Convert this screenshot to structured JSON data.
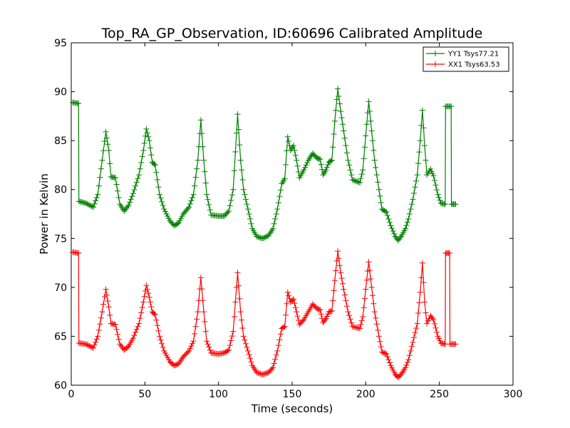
{
  "chart_data": {
    "type": "line",
    "title": "Top_RA_GP_Observation, ID:60696 Calibrated Amplitude",
    "xlabel": "Time (seconds)",
    "ylabel": "Power in Kelvin",
    "xlim": [
      0,
      300
    ],
    "ylim": [
      60,
      95
    ],
    "xticks": [
      0,
      50,
      100,
      150,
      200,
      250,
      300
    ],
    "yticks": [
      60,
      65,
      70,
      75,
      80,
      85,
      90,
      95
    ],
    "grid": false,
    "legend_position": "top-right",
    "marker": "+",
    "series": [
      {
        "name": "YY1 Tsys77.21",
        "color": "#008000",
        "anchors": [
          [
            1,
            88.9
          ],
          [
            5,
            88.8
          ],
          [
            5.2,
            78.8
          ],
          [
            10,
            78.6
          ],
          [
            15,
            78.2
          ],
          [
            18,
            79.5
          ],
          [
            21,
            83
          ],
          [
            23.5,
            85.9
          ],
          [
            25.5,
            84
          ],
          [
            27,
            81.3
          ],
          [
            30,
            81.2
          ],
          [
            33,
            78.5
          ],
          [
            36,
            77.8
          ],
          [
            39,
            78.4
          ],
          [
            42,
            79.6
          ],
          [
            46,
            81.5
          ],
          [
            49,
            84
          ],
          [
            51,
            86.2
          ],
          [
            53,
            85
          ],
          [
            55,
            82.8
          ],
          [
            57,
            82.5
          ],
          [
            60,
            79.5
          ],
          [
            63,
            78
          ],
          [
            67,
            76.8
          ],
          [
            70,
            76.3
          ],
          [
            73,
            76.6
          ],
          [
            76,
            77.5
          ],
          [
            80,
            78.2
          ],
          [
            83,
            79.5
          ],
          [
            86,
            83
          ],
          [
            88,
            87.1
          ],
          [
            90,
            83
          ],
          [
            92,
            79.5
          ],
          [
            95,
            77.4
          ],
          [
            100,
            77.3
          ],
          [
            104,
            77.3
          ],
          [
            107,
            77.8
          ],
          [
            110,
            80
          ],
          [
            113,
            87.7
          ],
          [
            115,
            83
          ],
          [
            117,
            80
          ],
          [
            120,
            78
          ],
          [
            123,
            76
          ],
          [
            126,
            75.2
          ],
          [
            130,
            75
          ],
          [
            134,
            75.3
          ],
          [
            137,
            76
          ],
          [
            140,
            78
          ],
          [
            143,
            80.6
          ],
          [
            145,
            81.1
          ],
          [
            147,
            85.4
          ],
          [
            149,
            84
          ],
          [
            151,
            84.5
          ],
          [
            153,
            83
          ],
          [
            155,
            81.2
          ],
          [
            158,
            82
          ],
          [
            161,
            83
          ],
          [
            164,
            83.7
          ],
          [
            167,
            83.2
          ],
          [
            169,
            83.1
          ],
          [
            171,
            81.5
          ],
          [
            173,
            82
          ],
          [
            175,
            82.8
          ],
          [
            177,
            83
          ],
          [
            179,
            87
          ],
          [
            181,
            90.3
          ],
          [
            183,
            88
          ],
          [
            185,
            86
          ],
          [
            188,
            83
          ],
          [
            191,
            81
          ],
          [
            196,
            80.7
          ],
          [
            198,
            82
          ],
          [
            200,
            85.5
          ],
          [
            202,
            89
          ],
          [
            204,
            86
          ],
          [
            206,
            83
          ],
          [
            209,
            80
          ],
          [
            211,
            78
          ],
          [
            214,
            77.7
          ],
          [
            217,
            76.3
          ],
          [
            220,
            75.2
          ],
          [
            222,
            74.8
          ],
          [
            224,
            75.2
          ],
          [
            227,
            76
          ],
          [
            229,
            77
          ],
          [
            232,
            79
          ],
          [
            235,
            81.5
          ],
          [
            237,
            85
          ],
          [
            238.5,
            88.1
          ],
          [
            240,
            84.5
          ],
          [
            241.5,
            81.5
          ],
          [
            244,
            82.1
          ],
          [
            246,
            81.4
          ],
          [
            249,
            79.5
          ],
          [
            251,
            78.6
          ],
          [
            254,
            78.5
          ],
          [
            254.2,
            88.5
          ],
          [
            258,
            88.5
          ],
          [
            258.2,
            78.5
          ],
          [
            261,
            78.5
          ]
        ]
      },
      {
        "name": "XX1 Tsys63.53",
        "color": "#ff0000",
        "anchors": [
          [
            1,
            73.6
          ],
          [
            5,
            73.5
          ],
          [
            5.2,
            64.3
          ],
          [
            10,
            64.2
          ],
          [
            15,
            63.8
          ],
          [
            18,
            65
          ],
          [
            21,
            67.5
          ],
          [
            23.5,
            69.8
          ],
          [
            25.5,
            68
          ],
          [
            27,
            66.3
          ],
          [
            30,
            66.2
          ],
          [
            33,
            64.2
          ],
          [
            36,
            63.6
          ],
          [
            39,
            64
          ],
          [
            42,
            64.8
          ],
          [
            46,
            66.3
          ],
          [
            49,
            68.5
          ],
          [
            51,
            70.2
          ],
          [
            53,
            69
          ],
          [
            55,
            67.5
          ],
          [
            57,
            67.2
          ],
          [
            60,
            65
          ],
          [
            63,
            63.5
          ],
          [
            67,
            62.4
          ],
          [
            70,
            62
          ],
          [
            73,
            62.2
          ],
          [
            76,
            62.9
          ],
          [
            80,
            63.5
          ],
          [
            83,
            64.5
          ],
          [
            86,
            67.5
          ],
          [
            88,
            71
          ],
          [
            90,
            67.5
          ],
          [
            92,
            64.5
          ],
          [
            95,
            63.3
          ],
          [
            100,
            63.2
          ],
          [
            104,
            63.3
          ],
          [
            107,
            63.6
          ],
          [
            110,
            65.5
          ],
          [
            113,
            71.5
          ],
          [
            115,
            67.5
          ],
          [
            117,
            65
          ],
          [
            120,
            63.5
          ],
          [
            123,
            62
          ],
          [
            126,
            61.3
          ],
          [
            130,
            61.1
          ],
          [
            134,
            61.3
          ],
          [
            137,
            61.8
          ],
          [
            140,
            63.5
          ],
          [
            143,
            65.8
          ],
          [
            145,
            66
          ],
          [
            147,
            69.5
          ],
          [
            149,
            68.5
          ],
          [
            151,
            68.8
          ],
          [
            153,
            67.5
          ],
          [
            155,
            66.2
          ],
          [
            158,
            66.7
          ],
          [
            161,
            67.5
          ],
          [
            164,
            68.3
          ],
          [
            167,
            67.8
          ],
          [
            169,
            67.7
          ],
          [
            171,
            66.4
          ],
          [
            173,
            66.8
          ],
          [
            175,
            67.5
          ],
          [
            177,
            67.6
          ],
          [
            179,
            70.7
          ],
          [
            181,
            73.7
          ],
          [
            183,
            71.5
          ],
          [
            185,
            69.8
          ],
          [
            188,
            67.5
          ],
          [
            191,
            66
          ],
          [
            196,
            65.8
          ],
          [
            198,
            67
          ],
          [
            200,
            69.8
          ],
          [
            202,
            72.6
          ],
          [
            204,
            70
          ],
          [
            206,
            67.5
          ],
          [
            209,
            65
          ],
          [
            211,
            63.4
          ],
          [
            214,
            63.2
          ],
          [
            217,
            62
          ],
          [
            220,
            61.1
          ],
          [
            222,
            60.8
          ],
          [
            224,
            61.1
          ],
          [
            227,
            61.8
          ],
          [
            229,
            62.6
          ],
          [
            232,
            64.4
          ],
          [
            235,
            66.3
          ],
          [
            237,
            69.5
          ],
          [
            238.5,
            72.5
          ],
          [
            240,
            68.5
          ],
          [
            241.5,
            66.3
          ],
          [
            244,
            67.1
          ],
          [
            246,
            66.7
          ],
          [
            249,
            65
          ],
          [
            251,
            64.3
          ],
          [
            254,
            64.2
          ],
          [
            254.2,
            73.5
          ],
          [
            257,
            73.5
          ],
          [
            257.2,
            64.2
          ],
          [
            261,
            64.2
          ]
        ]
      }
    ]
  }
}
